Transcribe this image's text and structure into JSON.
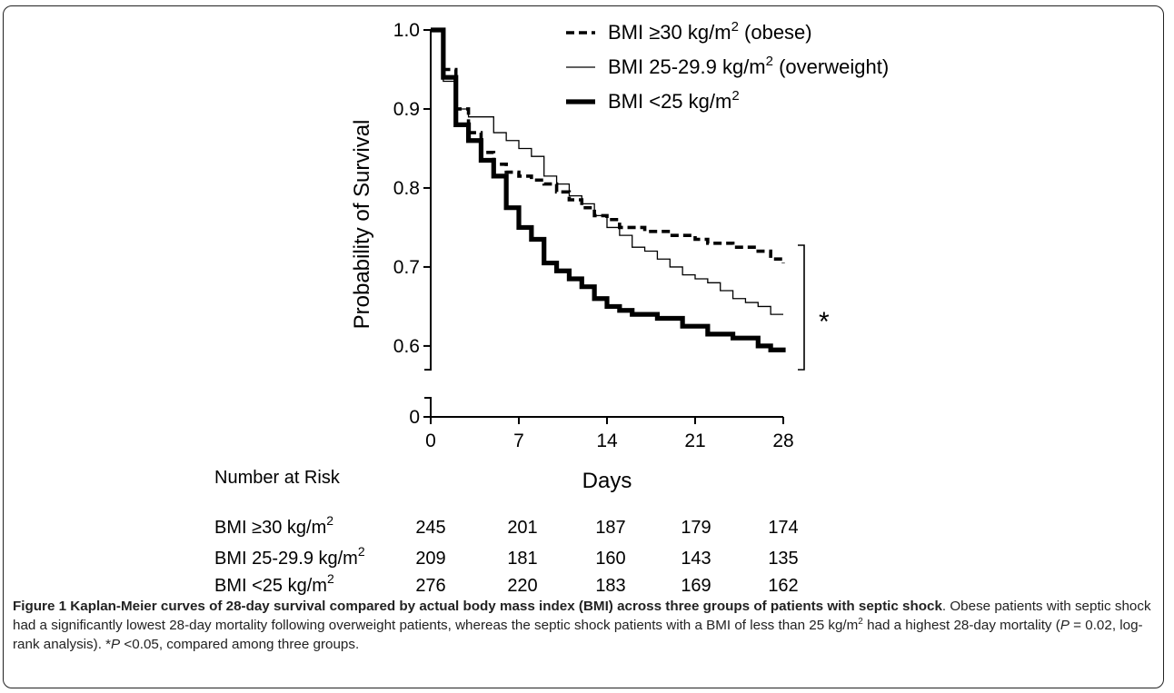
{
  "chart_data": {
    "type": "line",
    "step": true,
    "ylabel": "Probability of Survival",
    "xlabel": "Days",
    "xlim": [
      0,
      28
    ],
    "ylim": [
      0.57,
      1.0
    ],
    "y_axis_break": true,
    "x_ticks": [
      0,
      7,
      14,
      21,
      28
    ],
    "x_tick_labels": [
      "0",
      "7",
      "14",
      "21",
      "28"
    ],
    "y_ticks": [
      0.6,
      0.7,
      0.8,
      0.9,
      1.0
    ],
    "y_tick_labels": [
      "0.6",
      "0.7",
      "0.8",
      "0.9",
      "1.0"
    ],
    "y_zero_label": "0",
    "legend_position": "top-right",
    "legend_entries": [
      {
        "label": "BMI ≥30 kg/m",
        "sup": "2",
        "suffix": " (obese)",
        "style": "dashed"
      },
      {
        "label": "BMI 25-29.9 kg/m",
        "sup": "2",
        "suffix": " (overweight)",
        "style": "thin"
      },
      {
        "label": "BMI <25 kg/m",
        "sup": "2",
        "suffix": "",
        "style": "thick"
      }
    ],
    "significance_marker": "*",
    "series": [
      {
        "name": "BMI ≥30 kg/m2 (obese)",
        "style": "dashed",
        "x": [
          0,
          1,
          2,
          3,
          4,
          5,
          6,
          7,
          8,
          9,
          10,
          11,
          12,
          13,
          14,
          15,
          17,
          19,
          21,
          22,
          24,
          26,
          27,
          28
        ],
        "y": [
          1.0,
          0.95,
          0.9,
          0.87,
          0.845,
          0.83,
          0.82,
          0.815,
          0.81,
          0.805,
          0.795,
          0.785,
          0.775,
          0.765,
          0.76,
          0.75,
          0.745,
          0.74,
          0.735,
          0.73,
          0.725,
          0.72,
          0.71,
          0.705
        ]
      },
      {
        "name": "BMI 25-29.9 kg/m2 (overweight)",
        "style": "thin",
        "x": [
          0,
          1,
          2,
          3,
          5,
          6,
          7,
          8,
          9,
          10,
          11,
          12,
          13,
          14,
          15,
          16,
          17,
          18,
          19,
          20,
          21,
          22,
          23,
          24,
          25,
          26,
          27,
          28
        ],
        "y": [
          1.0,
          0.935,
          0.9,
          0.89,
          0.87,
          0.86,
          0.85,
          0.84,
          0.815,
          0.805,
          0.79,
          0.78,
          0.765,
          0.75,
          0.74,
          0.725,
          0.72,
          0.71,
          0.7,
          0.69,
          0.685,
          0.68,
          0.67,
          0.66,
          0.655,
          0.65,
          0.64,
          0.64
        ]
      },
      {
        "name": "BMI <25 kg/m2",
        "style": "thick",
        "x": [
          0,
          1,
          2,
          3,
          4,
          5,
          6,
          7,
          8,
          9,
          10,
          11,
          12,
          13,
          14,
          15,
          16,
          18,
          20,
          22,
          24,
          26,
          27,
          28
        ],
        "y": [
          1.0,
          0.94,
          0.88,
          0.86,
          0.835,
          0.815,
          0.775,
          0.75,
          0.735,
          0.705,
          0.695,
          0.685,
          0.675,
          0.66,
          0.65,
          0.645,
          0.64,
          0.635,
          0.625,
          0.615,
          0.61,
          0.6,
          0.595,
          0.592
        ]
      }
    ],
    "risk_table": {
      "title": "Number at Risk",
      "rows": [
        {
          "label": "BMI ≥30 kg/m",
          "sup": "2",
          "values": [
            "245",
            "201",
            "187",
            "179",
            "174"
          ]
        },
        {
          "label": "BMI 25-29.9 kg/m",
          "sup": "2",
          "values": [
            "209",
            "181",
            "160",
            "143",
            "135"
          ]
        },
        {
          "label": "BMI <25 kg/m",
          "sup": "2",
          "values": [
            "276",
            "220",
            "183",
            "169",
            "162"
          ]
        }
      ]
    }
  },
  "caption": {
    "title": "Figure 1 Kaplan-Meier curves of 28-day survival compared by actual body mass index (BMI) across three groups of patients with septic shock",
    "body_1": ". Obese patients with septic shock had a significantly lowest 28-day mortality following overweight patients, whereas the septic shock patients with a BMI of less than 25 kg/m",
    "sup": "2",
    "body_2": " had a highest 28-day mortality (",
    "p_symbol": "P",
    "body_3": " = 0.02, log-rank analysis). *",
    "p_symbol_2": "P",
    "body_4": " <0.05, compared among three groups."
  }
}
